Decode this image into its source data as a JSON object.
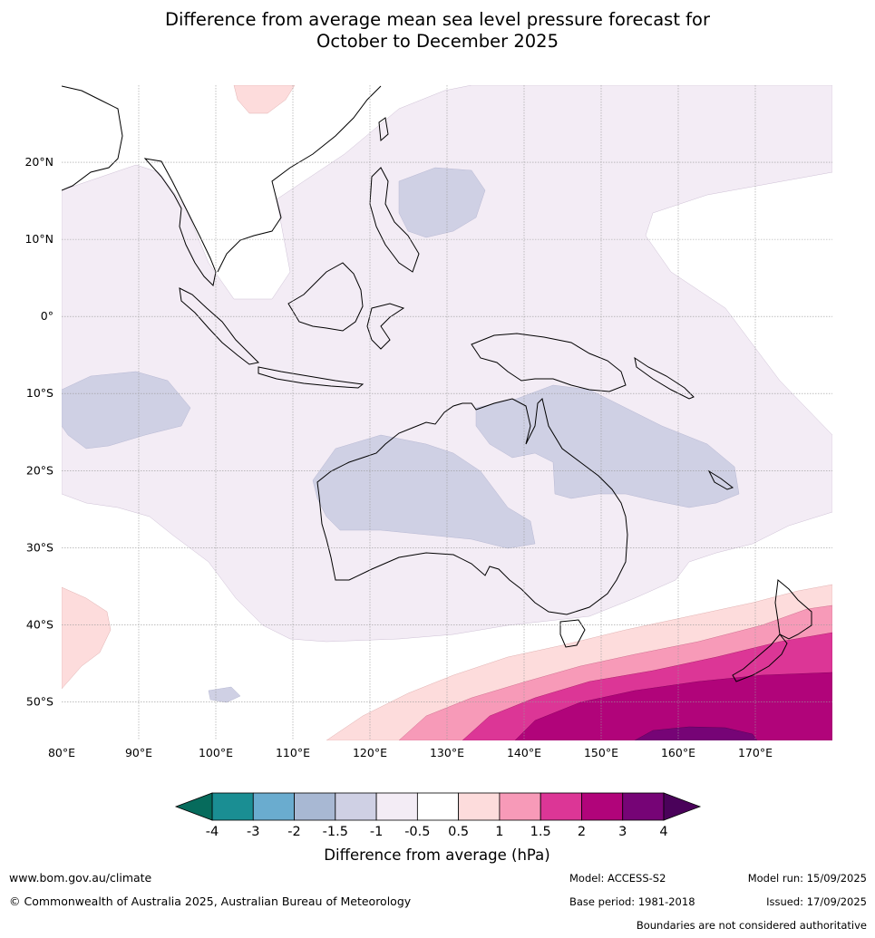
{
  "title": {
    "line1": "Difference from average mean sea level pressure forecast for",
    "line2": "October to December 2025"
  },
  "map": {
    "lon_ticks": [
      "80°E",
      "90°E",
      "100°E",
      "110°E",
      "120°E",
      "130°E",
      "140°E",
      "150°E",
      "160°E",
      "170°E"
    ],
    "lat_ticks": [
      "20°N",
      "10°N",
      "0°",
      "10°S",
      "20°S",
      "30°S",
      "40°S",
      "50°S"
    ],
    "lon_values": [
      80,
      90,
      100,
      110,
      120,
      130,
      140,
      150,
      160,
      170
    ],
    "lat_values": [
      20,
      10,
      0,
      -10,
      -20,
      -30,
      -40,
      -50
    ],
    "lon_range": [
      80,
      180
    ],
    "lat_range": [
      -55,
      30
    ]
  },
  "colorbar": {
    "title": "Difference from average (hPa)",
    "tick_labels": [
      "-4",
      "-3",
      "-2",
      "-1.5",
      "-1",
      "-0.5",
      "0.5",
      "1",
      "1.5",
      "2",
      "3",
      "4"
    ],
    "colors": [
      "#1a8e93",
      "#6aaccf",
      "#a8b8d3",
      "#cfd0e4",
      "#f3ecf5",
      "#ffffff",
      "#fddcdc",
      "#f79ab8",
      "#dc3696",
      "#b1047a",
      "#760476"
    ],
    "extend_low_color": "#066b5c",
    "extend_high_color": "#4a025a"
  },
  "footer": {
    "website": "www.bom.gov.au/climate",
    "copyright": "© Commonwealth of Australia 2025, Australian Bureau of Meteorology",
    "model": "Model: ACCESS-S2",
    "base_period": "Base period: 1981-2018",
    "model_run": "Model run: 15/09/2025",
    "issued": "Issued: 17/09/2025",
    "disclaimer": "Boundaries are not considered authoritative"
  }
}
